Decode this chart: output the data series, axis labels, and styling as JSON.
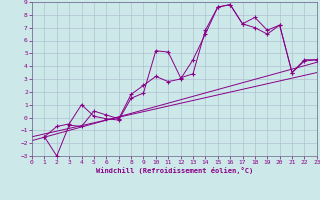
{
  "xlabel": "Windchill (Refroidissement éolien,°C)",
  "background_color": "#cde8e8",
  "grid_color": "#aab8cc",
  "line_color": "#880088",
  "xlim": [
    0,
    23
  ],
  "ylim": [
    -3,
    9
  ],
  "xticks": [
    0,
    1,
    2,
    3,
    4,
    5,
    6,
    7,
    8,
    9,
    10,
    11,
    12,
    13,
    14,
    15,
    16,
    17,
    18,
    19,
    20,
    21,
    22,
    23
  ],
  "yticks": [
    -3,
    -2,
    -1,
    0,
    1,
    2,
    3,
    4,
    5,
    6,
    7,
    8,
    9
  ],
  "series1_x": [
    1,
    2,
    3,
    4,
    5,
    6,
    7,
    8,
    9,
    10,
    11,
    12,
    13,
    14,
    15,
    16,
    17,
    18,
    19,
    20,
    21,
    22,
    23
  ],
  "series1_y": [
    -1.5,
    -0.7,
    -0.5,
    1.0,
    0.1,
    -0.1,
    -0.2,
    1.5,
    1.9,
    5.2,
    5.1,
    3.1,
    3.4,
    6.8,
    8.6,
    8.8,
    7.3,
    7.0,
    6.5,
    7.2,
    3.5,
    4.5,
    4.5
  ],
  "series2_x": [
    1,
    2,
    3,
    4,
    5,
    6,
    7,
    8,
    9,
    10,
    11,
    12,
    13,
    14,
    15,
    16,
    17,
    18,
    19,
    20,
    21,
    22,
    23
  ],
  "series2_y": [
    -1.5,
    -3.0,
    -0.6,
    -0.7,
    0.5,
    0.2,
    -0.1,
    1.8,
    2.5,
    3.2,
    2.8,
    3.0,
    4.5,
    6.5,
    8.6,
    8.8,
    7.3,
    7.8,
    6.8,
    7.2,
    3.5,
    4.4,
    4.5
  ],
  "trend1_x": [
    0,
    23
  ],
  "trend1_y": [
    -1.8,
    4.3
  ],
  "trend2_x": [
    0,
    23
  ],
  "trend2_y": [
    -1.5,
    3.5
  ]
}
